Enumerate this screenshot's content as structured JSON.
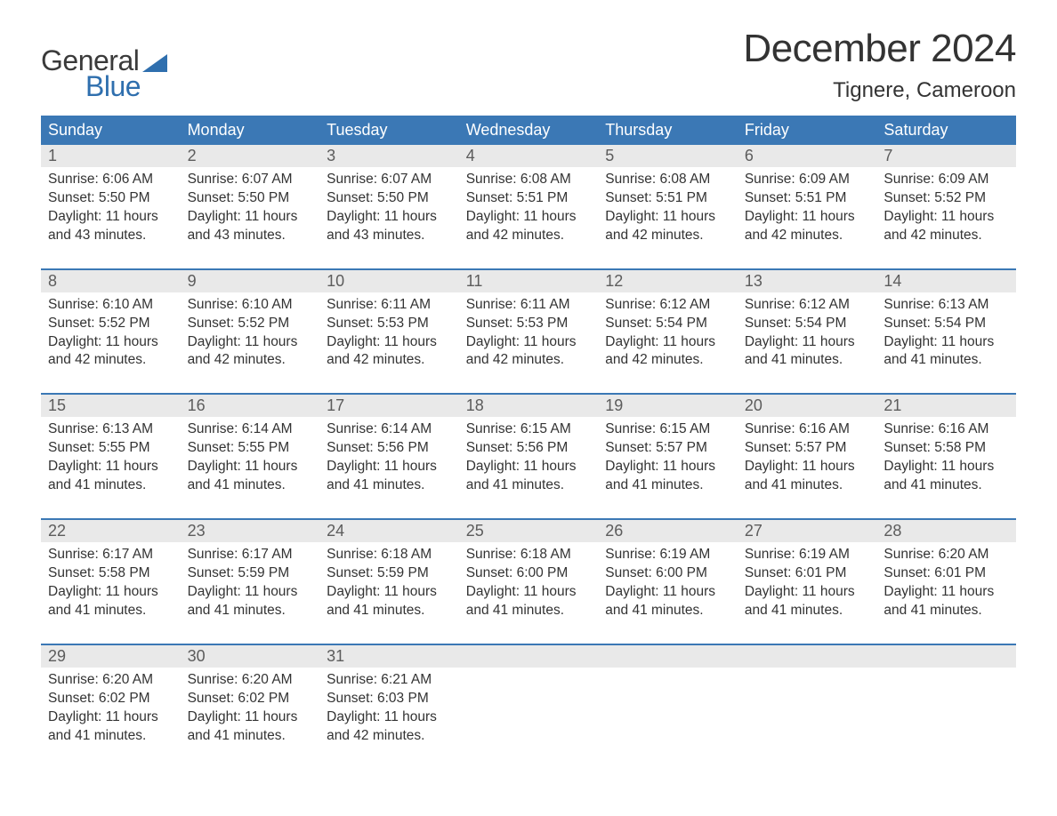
{
  "brand": {
    "word1": "General",
    "word2": "Blue",
    "accent_color": "#2f6fae"
  },
  "title": "December 2024",
  "location": "Tignere, Cameroon",
  "colors": {
    "header_bg": "#3b78b5",
    "header_text": "#ffffff",
    "daynum_bg": "#e9e9e9",
    "daynum_text": "#5c5c5c",
    "body_text": "#333333",
    "week_rule": "#3b78b5",
    "page_bg": "#ffffff"
  },
  "typography": {
    "month_title_fontsize": 44,
    "location_fontsize": 24,
    "dow_fontsize": 18,
    "daynum_fontsize": 18,
    "cell_fontsize": 15.5
  },
  "days_of_week": [
    "Sunday",
    "Monday",
    "Tuesday",
    "Wednesday",
    "Thursday",
    "Friday",
    "Saturday"
  ],
  "weeks": [
    [
      {
        "n": "1",
        "sunrise": "6:06 AM",
        "sunset": "5:50 PM",
        "daylight": "11 hours and 43 minutes."
      },
      {
        "n": "2",
        "sunrise": "6:07 AM",
        "sunset": "5:50 PM",
        "daylight": "11 hours and 43 minutes."
      },
      {
        "n": "3",
        "sunrise": "6:07 AM",
        "sunset": "5:50 PM",
        "daylight": "11 hours and 43 minutes."
      },
      {
        "n": "4",
        "sunrise": "6:08 AM",
        "sunset": "5:51 PM",
        "daylight": "11 hours and 42 minutes."
      },
      {
        "n": "5",
        "sunrise": "6:08 AM",
        "sunset": "5:51 PM",
        "daylight": "11 hours and 42 minutes."
      },
      {
        "n": "6",
        "sunrise": "6:09 AM",
        "sunset": "5:51 PM",
        "daylight": "11 hours and 42 minutes."
      },
      {
        "n": "7",
        "sunrise": "6:09 AM",
        "sunset": "5:52 PM",
        "daylight": "11 hours and 42 minutes."
      }
    ],
    [
      {
        "n": "8",
        "sunrise": "6:10 AM",
        "sunset": "5:52 PM",
        "daylight": "11 hours and 42 minutes."
      },
      {
        "n": "9",
        "sunrise": "6:10 AM",
        "sunset": "5:52 PM",
        "daylight": "11 hours and 42 minutes."
      },
      {
        "n": "10",
        "sunrise": "6:11 AM",
        "sunset": "5:53 PM",
        "daylight": "11 hours and 42 minutes."
      },
      {
        "n": "11",
        "sunrise": "6:11 AM",
        "sunset": "5:53 PM",
        "daylight": "11 hours and 42 minutes."
      },
      {
        "n": "12",
        "sunrise": "6:12 AM",
        "sunset": "5:54 PM",
        "daylight": "11 hours and 42 minutes."
      },
      {
        "n": "13",
        "sunrise": "6:12 AM",
        "sunset": "5:54 PM",
        "daylight": "11 hours and 41 minutes."
      },
      {
        "n": "14",
        "sunrise": "6:13 AM",
        "sunset": "5:54 PM",
        "daylight": "11 hours and 41 minutes."
      }
    ],
    [
      {
        "n": "15",
        "sunrise": "6:13 AM",
        "sunset": "5:55 PM",
        "daylight": "11 hours and 41 minutes."
      },
      {
        "n": "16",
        "sunrise": "6:14 AM",
        "sunset": "5:55 PM",
        "daylight": "11 hours and 41 minutes."
      },
      {
        "n": "17",
        "sunrise": "6:14 AM",
        "sunset": "5:56 PM",
        "daylight": "11 hours and 41 minutes."
      },
      {
        "n": "18",
        "sunrise": "6:15 AM",
        "sunset": "5:56 PM",
        "daylight": "11 hours and 41 minutes."
      },
      {
        "n": "19",
        "sunrise": "6:15 AM",
        "sunset": "5:57 PM",
        "daylight": "11 hours and 41 minutes."
      },
      {
        "n": "20",
        "sunrise": "6:16 AM",
        "sunset": "5:57 PM",
        "daylight": "11 hours and 41 minutes."
      },
      {
        "n": "21",
        "sunrise": "6:16 AM",
        "sunset": "5:58 PM",
        "daylight": "11 hours and 41 minutes."
      }
    ],
    [
      {
        "n": "22",
        "sunrise": "6:17 AM",
        "sunset": "5:58 PM",
        "daylight": "11 hours and 41 minutes."
      },
      {
        "n": "23",
        "sunrise": "6:17 AM",
        "sunset": "5:59 PM",
        "daylight": "11 hours and 41 minutes."
      },
      {
        "n": "24",
        "sunrise": "6:18 AM",
        "sunset": "5:59 PM",
        "daylight": "11 hours and 41 minutes."
      },
      {
        "n": "25",
        "sunrise": "6:18 AM",
        "sunset": "6:00 PM",
        "daylight": "11 hours and 41 minutes."
      },
      {
        "n": "26",
        "sunrise": "6:19 AM",
        "sunset": "6:00 PM",
        "daylight": "11 hours and 41 minutes."
      },
      {
        "n": "27",
        "sunrise": "6:19 AM",
        "sunset": "6:01 PM",
        "daylight": "11 hours and 41 minutes."
      },
      {
        "n": "28",
        "sunrise": "6:20 AM",
        "sunset": "6:01 PM",
        "daylight": "11 hours and 41 minutes."
      }
    ],
    [
      {
        "n": "29",
        "sunrise": "6:20 AM",
        "sunset": "6:02 PM",
        "daylight": "11 hours and 41 minutes."
      },
      {
        "n": "30",
        "sunrise": "6:20 AM",
        "sunset": "6:02 PM",
        "daylight": "11 hours and 41 minutes."
      },
      {
        "n": "31",
        "sunrise": "6:21 AM",
        "sunset": "6:03 PM",
        "daylight": "11 hours and 42 minutes."
      },
      null,
      null,
      null,
      null
    ]
  ],
  "labels": {
    "sunrise": "Sunrise:",
    "sunset": "Sunset:",
    "daylight": "Daylight:"
  }
}
